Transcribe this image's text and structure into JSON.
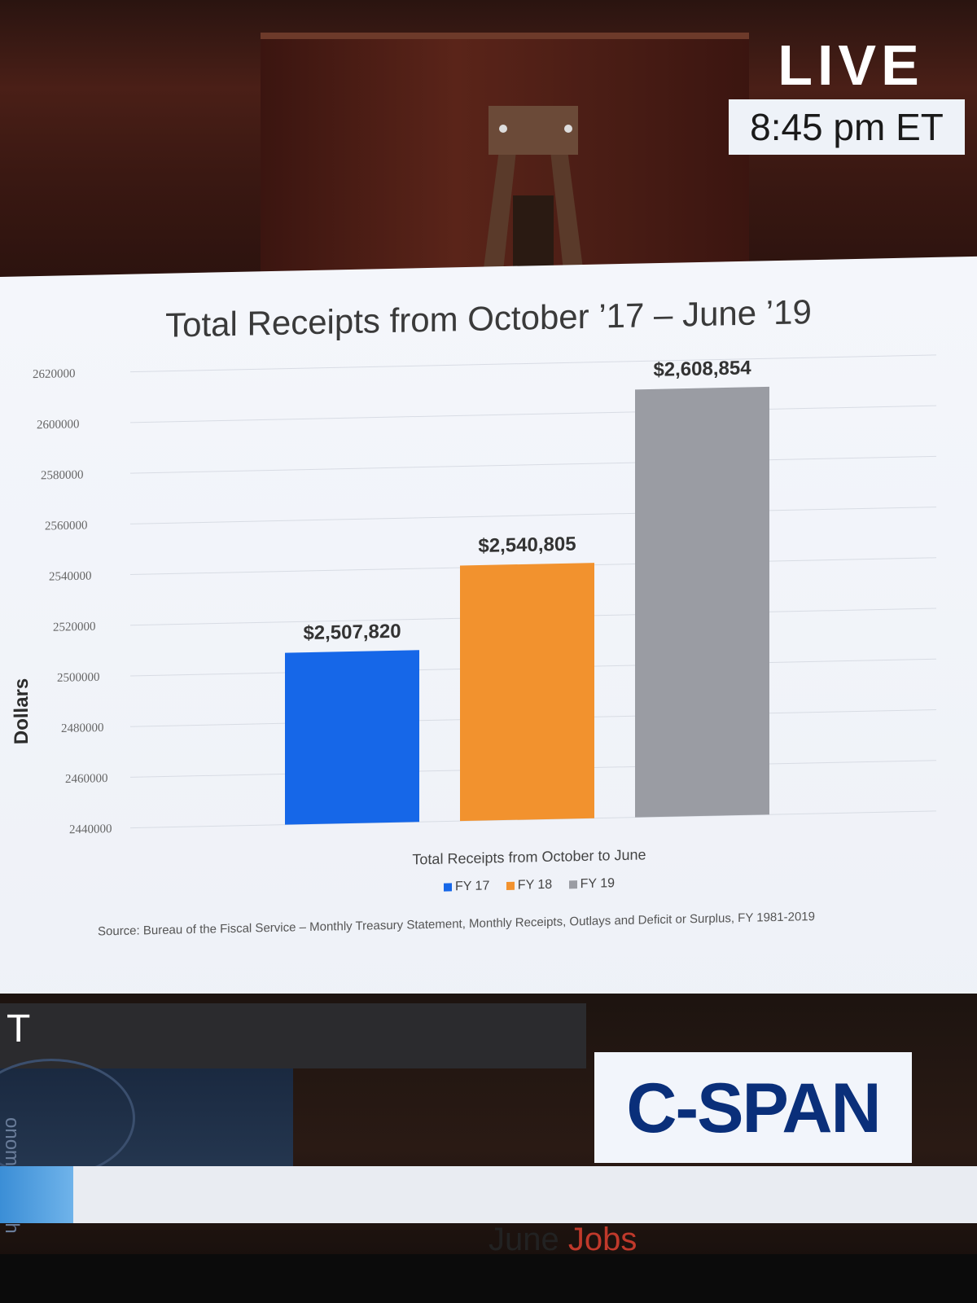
{
  "broadcast": {
    "live_label": "LIVE",
    "time": "8:45 pm ET",
    "network": "C-SPAN",
    "lower_third_letter": "T",
    "side_text_1": "onomic",
    "side_text_2": "rowth",
    "ticker": {
      "part1": "June",
      "part2": "Jobs"
    }
  },
  "colors": {
    "fy17": "#1667e8",
    "fy18": "#f2922e",
    "fy19": "#9a9ca3",
    "cspan": "#0a2f7a"
  },
  "chart_data": {
    "type": "bar",
    "title": "Total Receipts from October ’17 – June ’19",
    "xlabel": "Total Receipts from October to June",
    "ylabel": "Dollars",
    "ylim": [
      2440000,
      2620000
    ],
    "yticks": [
      "2620000",
      "2600000",
      "2580000",
      "2560000",
      "2540000",
      "2520000",
      "2500000",
      "2480000",
      "2460000",
      "2440000"
    ],
    "grid": true,
    "legend_position": "bottom",
    "series": [
      {
        "name": "FY 17",
        "value": 2507820,
        "label": "$2,507,820"
      },
      {
        "name": "FY 18",
        "value": 2540805,
        "label": "$2,540,805"
      },
      {
        "name": "FY 19",
        "value": 2608854,
        "label": "$2,608,854"
      }
    ],
    "source": "Source: Bureau of the Fiscal Service – Monthly Treasury Statement, Monthly Receipts, Outlays and Deficit or Surplus, FY 1981-2019"
  }
}
